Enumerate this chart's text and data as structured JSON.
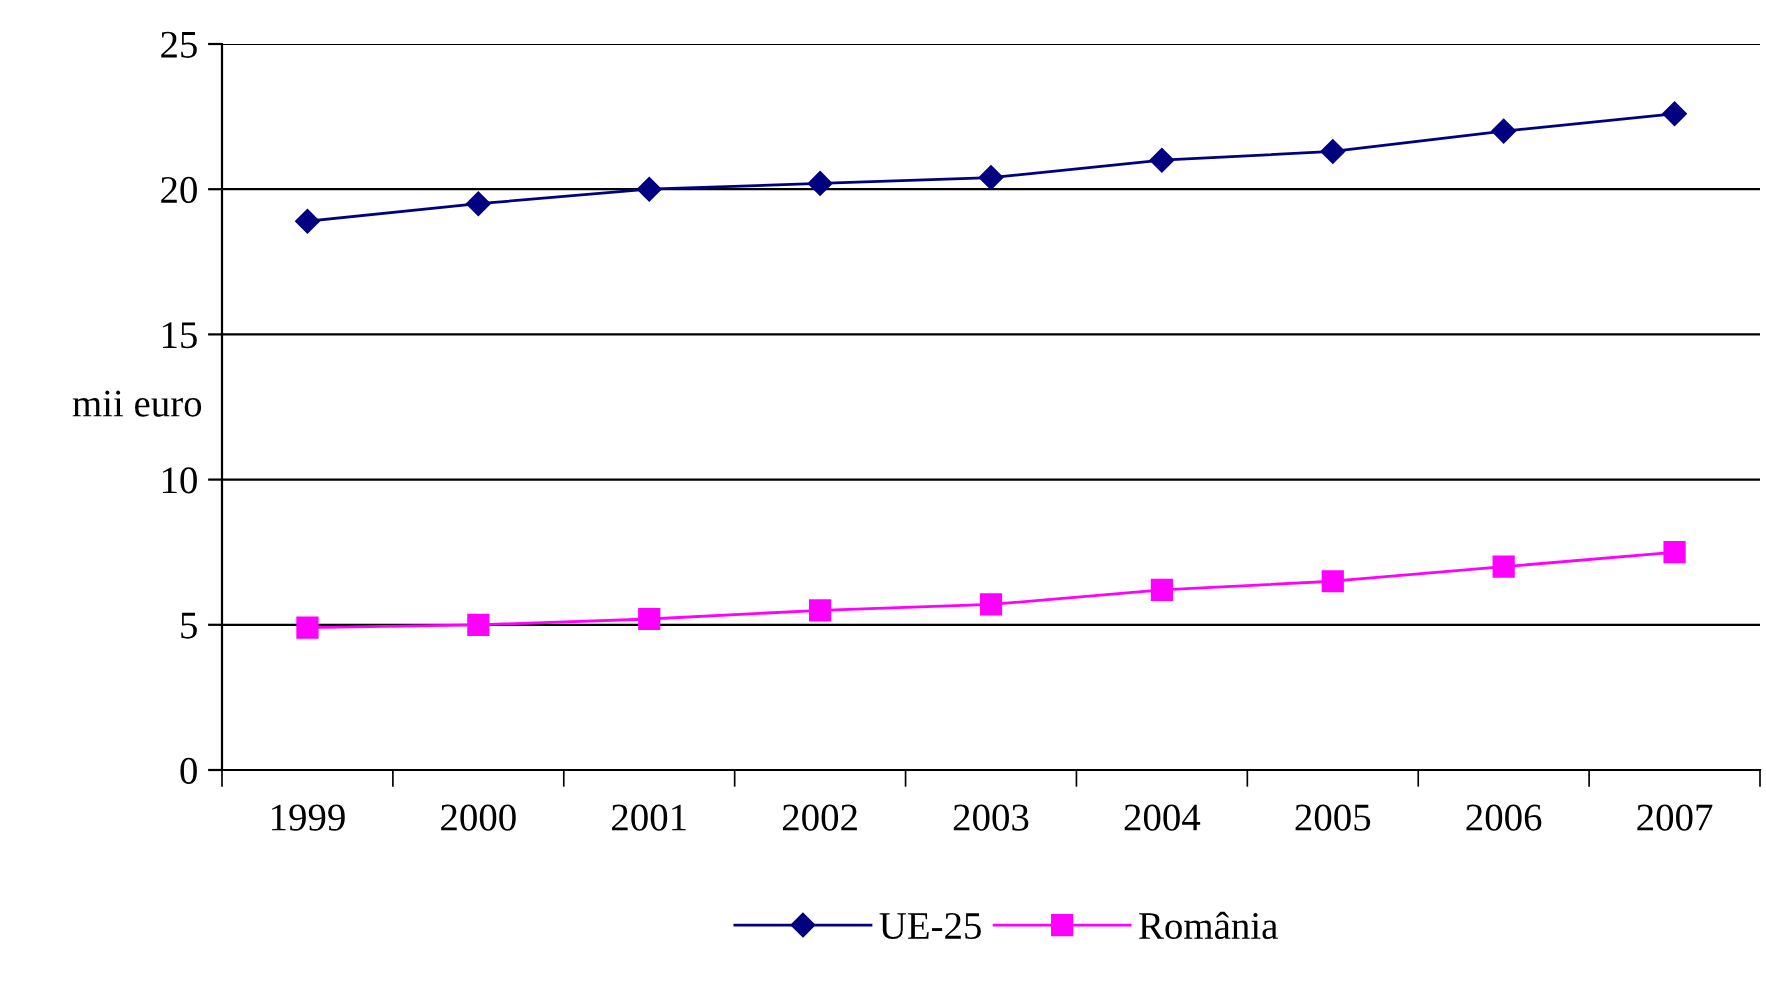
{
  "chart_data": {
    "type": "line",
    "ylabel": "mii euro",
    "categories": [
      "1999",
      "2000",
      "2001",
      "2002",
      "2003",
      "2004",
      "2005",
      "2006",
      "2007"
    ],
    "series": [
      {
        "name": "UE-25",
        "color": "#000080",
        "marker": "diamond",
        "values": [
          18.9,
          19.5,
          20.0,
          20.2,
          20.4,
          21.0,
          21.3,
          22.0,
          22.6
        ]
      },
      {
        "name": "România",
        "color": "#ff00ff",
        "marker": "square",
        "values": [
          4.9,
          5.0,
          5.2,
          5.5,
          5.7,
          6.2,
          6.5,
          7.0,
          7.5
        ]
      }
    ],
    "ylim": [
      0,
      25
    ],
    "yticks": [
      0,
      5,
      10,
      15,
      20,
      25
    ],
    "grid": "y",
    "legend": "bottom",
    "line_style": "solid"
  }
}
